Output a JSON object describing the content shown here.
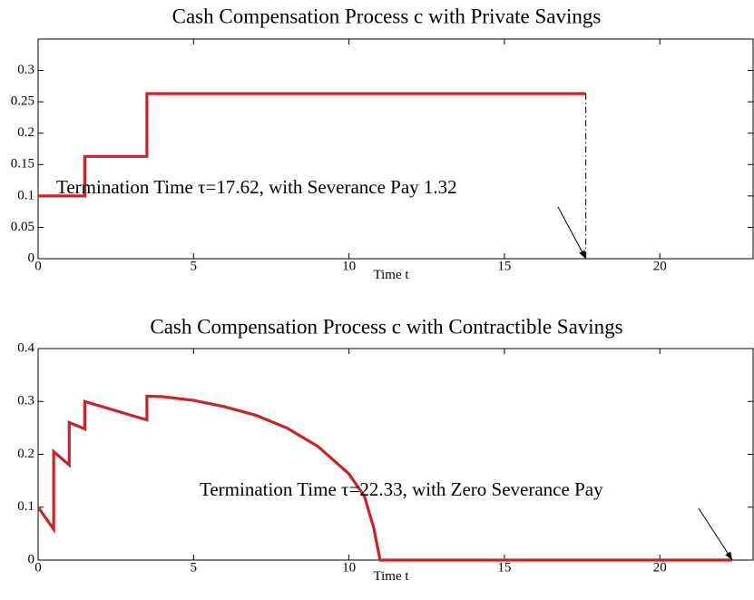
{
  "chart_data": [
    {
      "type": "line",
      "title": "Cash Compensation Process c with Private Savings",
      "xlabel": "Time t",
      "xlim": [
        0,
        23
      ],
      "ylim": [
        0,
        0.35
      ],
      "xticks": [
        0,
        5,
        10,
        15,
        20
      ],
      "yticks": [
        0,
        0.05,
        0.1,
        0.15,
        0.2,
        0.25,
        0.3
      ],
      "series": [
        {
          "color": "#cc2229",
          "style": "solid",
          "x": [
            0,
            1.5,
            1.5,
            3.5,
            3.5,
            17.62
          ],
          "values": [
            0.1,
            0.1,
            0.163,
            0.163,
            0.263,
            0.263
          ]
        },
        {
          "color": "#000000",
          "style": "dashdot",
          "x": [
            17.62,
            17.62
          ],
          "values": [
            0.263,
            0
          ]
        }
      ],
      "annotation": {
        "text": "Termination Time τ=17.62, with Severance Pay 1.32",
        "x": 17.62,
        "y": 0
      }
    },
    {
      "type": "line",
      "title": "Cash Compensation Process c with Contractible Savings",
      "xlabel": "Time t",
      "xlim": [
        0,
        23
      ],
      "ylim": [
        0,
        0.4
      ],
      "xticks": [
        0,
        5,
        10,
        15,
        20
      ],
      "yticks": [
        0,
        0.1,
        0.2,
        0.3,
        0.4
      ],
      "series": [
        {
          "color": "#cc2229",
          "style": "solid",
          "x": [
            0,
            0.5,
            0.5,
            1,
            1,
            1.5,
            1.5,
            3.5,
            3.5,
            4,
            5,
            6,
            7,
            8,
            9,
            10,
            10.5,
            10.8,
            11,
            22.33
          ],
          "values": [
            0.1,
            0.058,
            0.205,
            0.18,
            0.26,
            0.248,
            0.3,
            0.265,
            0.31,
            0.309,
            0.302,
            0.29,
            0.274,
            0.25,
            0.215,
            0.163,
            0.12,
            0.06,
            0,
            0
          ]
        }
      ],
      "annotation": {
        "text": "Termination Time τ=22.33, with Zero Severance Pay",
        "x": 22.33,
        "y": 0
      }
    }
  ]
}
